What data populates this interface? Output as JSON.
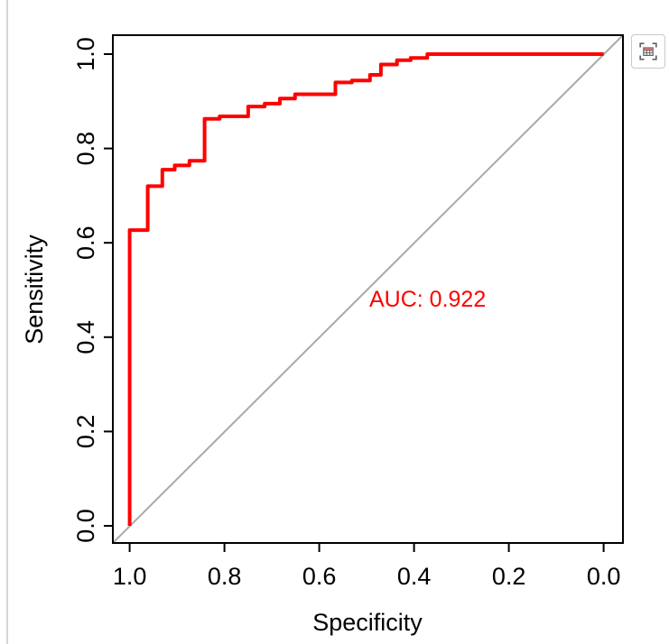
{
  "page": {
    "background": "#ffffff",
    "panel_border_color": "#d6d6d6"
  },
  "toolbar": {
    "capture_button_icon": "table-capture-icon"
  },
  "chart_data": {
    "type": "line",
    "subtype": "roc-step-curve",
    "title": "",
    "xlabel": "Specificity",
    "ylabel": "Sensitivity",
    "x_ticks": [
      "1.0",
      "0.8",
      "0.6",
      "0.4",
      "0.2",
      "0.0"
    ],
    "y_ticks": [
      "0.0",
      "0.2",
      "0.4",
      "0.6",
      "0.8",
      "1.0"
    ],
    "xlim": [
      1.0,
      0.0
    ],
    "ylim": [
      0.0,
      1.0
    ],
    "x_axis_reversed": true,
    "grid": false,
    "legend": "none",
    "annotation": {
      "label": "AUC: 0.922",
      "auc": 0.922,
      "color": "#ff0000",
      "at_specificity": 0.5,
      "at_sensitivity": 0.5
    },
    "reference_line": {
      "name": "chance-diagonal",
      "from": [
        1.0,
        0.0
      ],
      "to": [
        0.0,
        1.0
      ],
      "color": "#a9a9a9"
    },
    "axis_color": "#000000",
    "series": [
      {
        "name": "ROC curve",
        "color": "#ff0000",
        "line_width": 4,
        "points": [
          [
            1.0,
            0.0
          ],
          [
            1.0,
            0.627
          ],
          [
            0.962,
            0.627
          ],
          [
            0.962,
            0.72
          ],
          [
            0.931,
            0.72
          ],
          [
            0.931,
            0.755
          ],
          [
            0.905,
            0.755
          ],
          [
            0.905,
            0.764
          ],
          [
            0.874,
            0.764
          ],
          [
            0.874,
            0.774
          ],
          [
            0.842,
            0.774
          ],
          [
            0.842,
            0.863
          ],
          [
            0.81,
            0.863
          ],
          [
            0.81,
            0.868
          ],
          [
            0.75,
            0.868
          ],
          [
            0.75,
            0.889
          ],
          [
            0.715,
            0.889
          ],
          [
            0.715,
            0.895
          ],
          [
            0.683,
            0.895
          ],
          [
            0.683,
            0.906
          ],
          [
            0.651,
            0.906
          ],
          [
            0.651,
            0.915
          ],
          [
            0.566,
            0.915
          ],
          [
            0.566,
            0.94
          ],
          [
            0.531,
            0.94
          ],
          [
            0.531,
            0.944
          ],
          [
            0.493,
            0.944
          ],
          [
            0.493,
            0.956
          ],
          [
            0.47,
            0.956
          ],
          [
            0.47,
            0.978
          ],
          [
            0.436,
            0.978
          ],
          [
            0.436,
            0.987
          ],
          [
            0.407,
            0.987
          ],
          [
            0.407,
            0.992
          ],
          [
            0.372,
            0.992
          ],
          [
            0.372,
            1.0
          ],
          [
            0.0,
            1.0
          ]
        ]
      }
    ]
  }
}
